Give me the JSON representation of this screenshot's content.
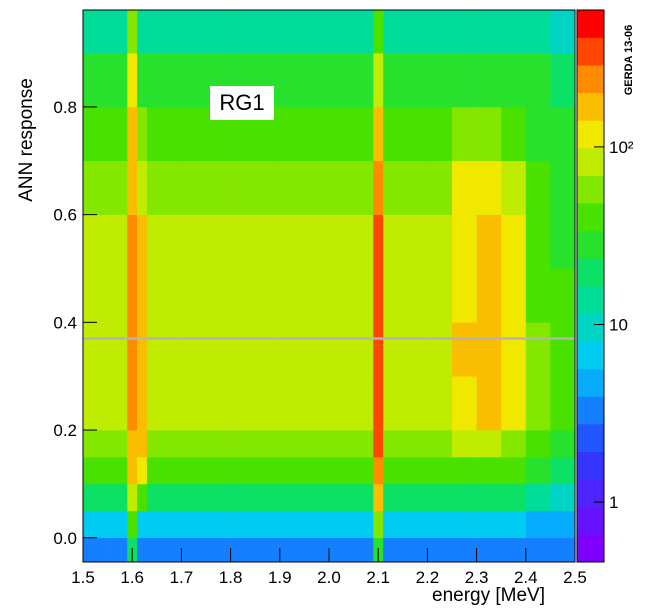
{
  "chart_data": {
    "type": "heatmap",
    "xlabel": "energy [MeV]",
    "ylabel": "ANN response",
    "annotation": "RG1",
    "watermark": "GERDA 13-06",
    "xlim": [
      1.5,
      2.5
    ],
    "ylim": [
      -0.045,
      0.98
    ],
    "xticks": [
      1.5,
      1.6,
      1.7,
      1.8,
      1.9,
      {
        "value": 2,
        "label": "2.0"
      },
      2.1,
      2.2,
      2.3,
      2.4,
      2.5
    ],
    "yticks": [
      {
        "value": 0,
        "label": "0.0"
      },
      0.2,
      0.4,
      0.6,
      0.8
    ],
    "zlim": [
      0.46,
      590
    ],
    "zscale": "log",
    "zticks": [
      1,
      10,
      {
        "value": 100,
        "label": "10²"
      }
    ],
    "hline": 0.37,
    "hline_color": "#b4b4b4",
    "xbins": [
      1.5,
      1.55,
      1.59,
      1.61,
      1.63,
      1.7,
      1.8,
      1.9,
      2.0,
      2.09,
      2.11,
      2.2,
      2.25,
      2.3,
      2.35,
      2.4,
      2.45,
      2.5
    ],
    "ybins": [
      -0.045,
      0,
      0.05,
      0.1,
      0.15,
      0.2,
      0.3,
      0.4,
      0.5,
      0.6,
      0.7,
      0.8,
      0.9,
      0.98
    ],
    "z": [
      [
        3,
        3,
        20,
        3,
        3,
        3,
        3,
        3,
        3,
        30,
        3,
        3,
        3,
        3,
        3,
        3,
        3
      ],
      [
        6,
        6,
        40,
        8,
        6,
        6,
        6,
        6,
        6,
        60,
        6,
        6,
        6,
        6,
        6,
        5,
        4
      ],
      [
        20,
        20,
        90,
        40,
        20,
        20,
        20,
        20,
        20,
        150,
        20,
        20,
        20,
        20,
        18,
        15,
        10
      ],
      [
        45,
        45,
        150,
        100,
        40,
        45,
        45,
        45,
        45,
        250,
        45,
        45,
        45,
        45,
        40,
        30,
        20
      ],
      [
        65,
        65,
        200,
        150,
        60,
        65,
        65,
        65,
        65,
        300,
        65,
        65,
        70,
        70,
        60,
        45,
        30
      ],
      [
        75,
        75,
        220,
        160,
        70,
        75,
        75,
        75,
        75,
        300,
        75,
        80,
        130,
        150,
        110,
        50,
        35
      ],
      [
        80,
        75,
        220,
        160,
        75,
        75,
        75,
        75,
        80,
        300,
        80,
        90,
        160,
        170,
        140,
        50,
        35
      ],
      [
        75,
        75,
        220,
        160,
        75,
        75,
        75,
        75,
        75,
        300,
        75,
        80,
        140,
        160,
        130,
        45,
        35
      ],
      [
        70,
        70,
        210,
        150,
        70,
        70,
        70,
        70,
        70,
        300,
        70,
        75,
        140,
        150,
        120,
        40,
        30
      ],
      [
        60,
        60,
        200,
        80,
        60,
        60,
        60,
        60,
        60,
        280,
        60,
        60,
        100,
        130,
        80,
        35,
        30
      ],
      [
        45,
        45,
        180,
        50,
        45,
        45,
        45,
        45,
        45,
        200,
        45,
        45,
        50,
        55,
        45,
        30,
        25
      ],
      [
        30,
        30,
        120,
        30,
        30,
        30,
        30,
        30,
        30,
        90,
        30,
        30,
        30,
        30,
        30,
        25,
        20
      ],
      [
        15,
        15,
        60,
        15,
        15,
        15,
        15,
        15,
        15,
        40,
        15,
        15,
        15,
        15,
        15,
        12,
        10
      ]
    ]
  }
}
